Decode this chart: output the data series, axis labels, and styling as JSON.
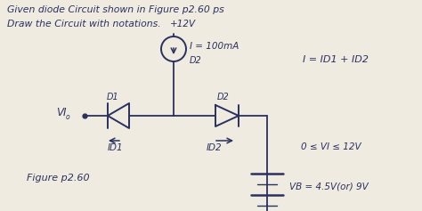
{
  "bg_color": "#f0ebe0",
  "line_color": "#2a3060",
  "text_color": "#2a3060",
  "title1": "Given diode Circuit shown in Figure p2.60 ps",
  "title2": "Draw the Circuit with notations.",
  "v12": "+12V",
  "i_label": "I = 100mA",
  "d1_label": "D1",
  "d2_label": "D2",
  "vi_label": "VI",
  "id1_label": "ID1",
  "id2_label": "ID2",
  "vb_label": "VB = 4.5V(or) 9V",
  "eq": "I = ID1 + ID2",
  "constraint": "0 ≤ VI ≤ 12V",
  "fig_label": "Figure p2.60"
}
